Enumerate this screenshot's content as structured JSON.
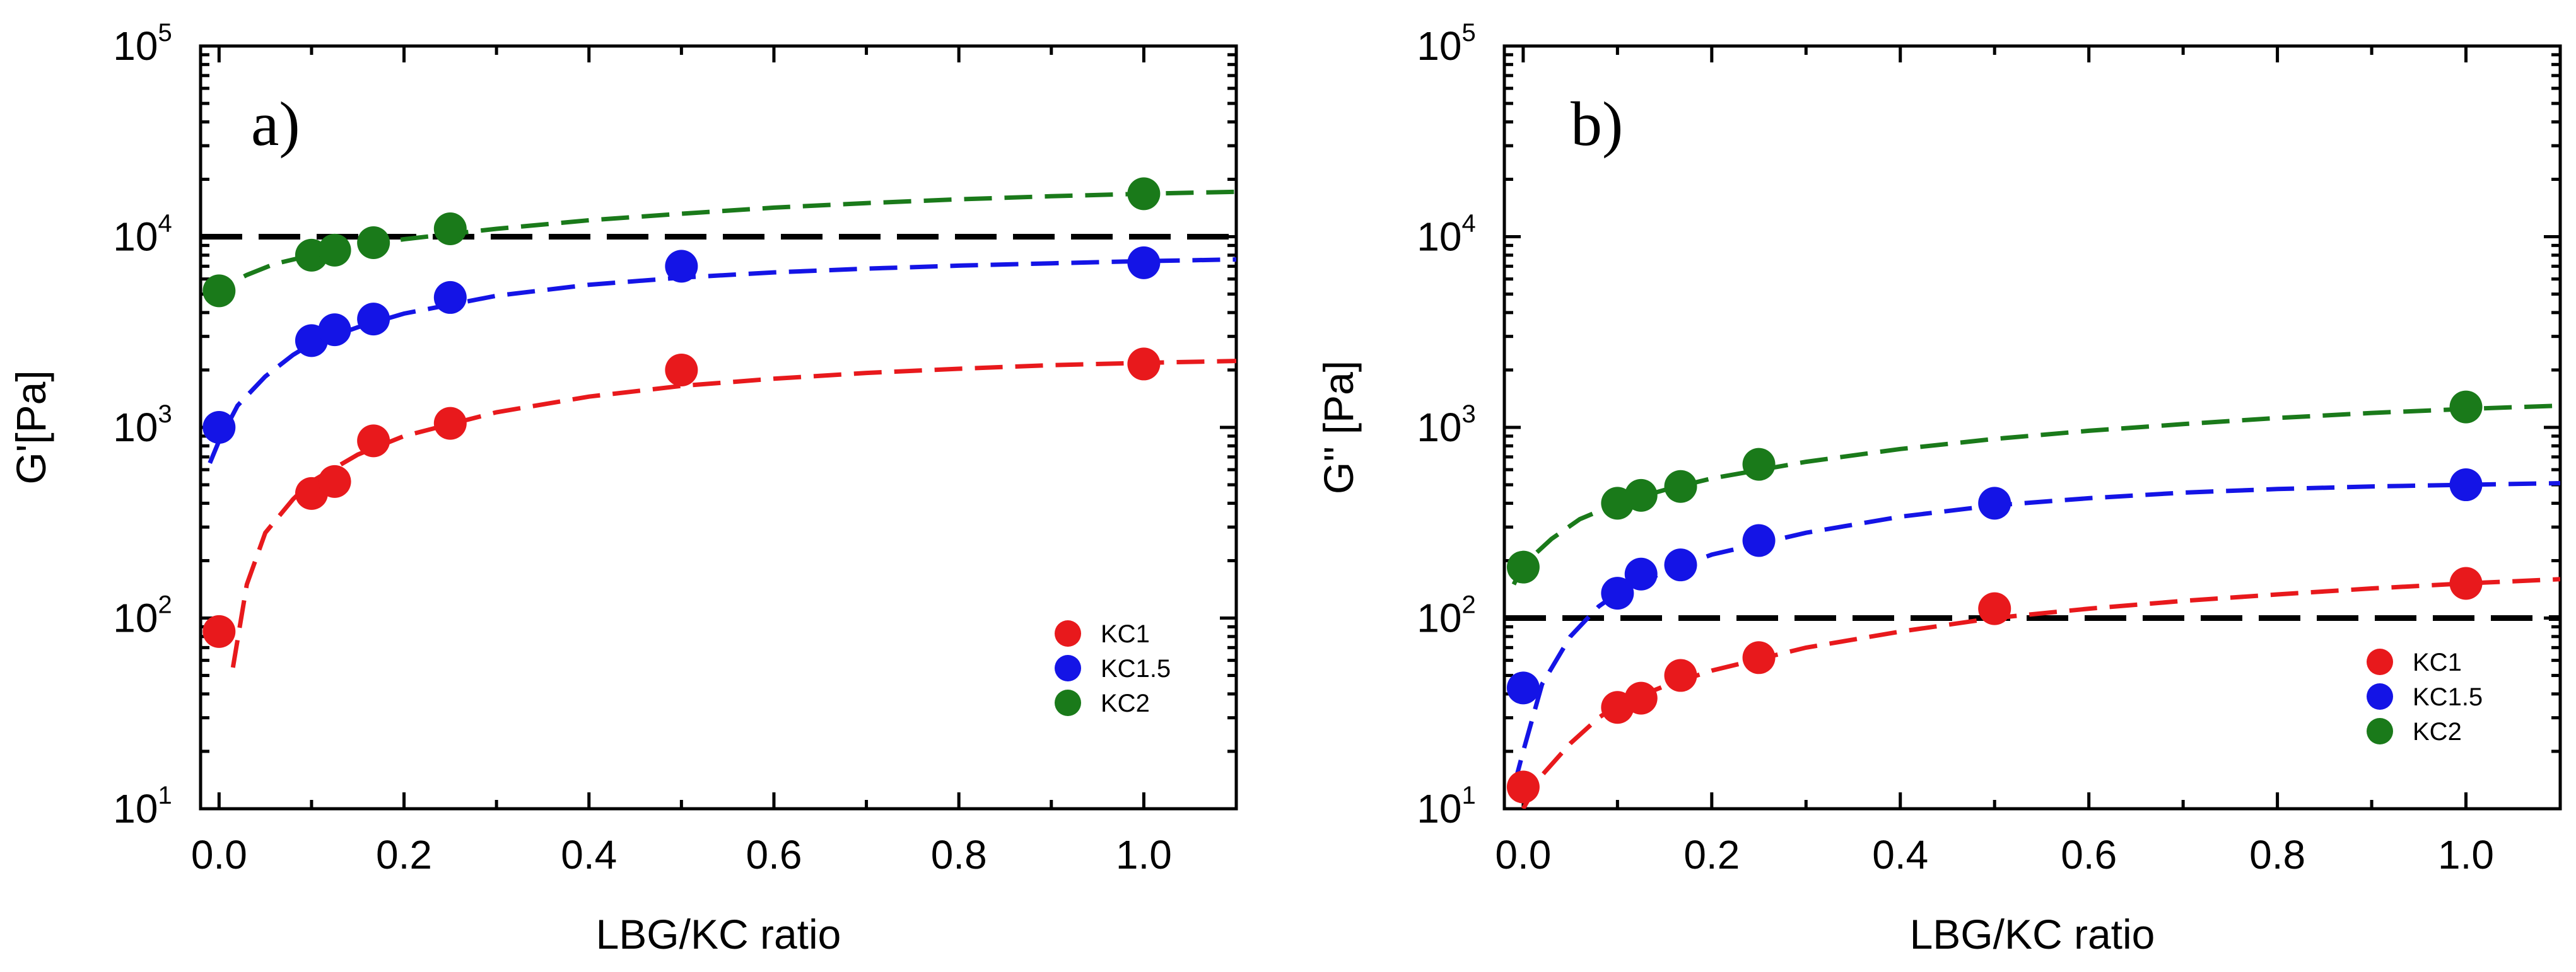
{
  "chart_data": [
    {
      "type": "scatter",
      "panel_label": "a)",
      "xlabel": "LBG/KC ratio",
      "ylabel": "G'[Pa]",
      "yscale": "log",
      "xlim": [
        -0.02,
        1.1
      ],
      "ylim": [
        10,
        100000
      ],
      "xticks": [
        {
          "value": 0.0,
          "label": "0.0"
        },
        {
          "value": 0.2,
          "label": "0.2"
        },
        {
          "value": 0.4,
          "label": "0.4"
        },
        {
          "value": 0.6,
          "label": "0.6"
        },
        {
          "value": 0.8,
          "label": "0.8"
        },
        {
          "value": 1.0,
          "label": "1.0"
        }
      ],
      "yticks": [
        {
          "value": 10,
          "base": "10",
          "exp": "1"
        },
        {
          "value": 100,
          "base": "10",
          "exp": "2"
        },
        {
          "value": 1000,
          "base": "10",
          "exp": "3"
        },
        {
          "value": 10000,
          "base": "10",
          "exp": "4"
        },
        {
          "value": 100000,
          "base": "10",
          "exp": "5"
        }
      ],
      "reference_line": 10000,
      "legend_position": "bottom-right",
      "series": [
        {
          "name": "KC1",
          "color": "#e8191c",
          "x": [
            0.0,
            0.1,
            0.125,
            0.167,
            0.25,
            0.5,
            1.0
          ],
          "y": [
            85,
            450,
            520,
            850,
            1050,
            2000,
            2150
          ],
          "fit": {
            "x": [
              0.015,
              0.03,
              0.05,
              0.08,
              0.1,
              0.15,
              0.2,
              0.3,
              0.4,
              0.5,
              0.6,
              0.7,
              0.8,
              0.9,
              1.0,
              1.1
            ],
            "y": [
              55,
              150,
              280,
              420,
              520,
              720,
              900,
              1200,
              1450,
              1650,
              1800,
              1930,
              2030,
              2120,
              2180,
              2230
            ]
          }
        },
        {
          "name": "KC1.5",
          "color": "#1414e6",
          "x": [
            0.0,
            0.1,
            0.125,
            0.167,
            0.25,
            0.5,
            1.0
          ],
          "y": [
            1000,
            2850,
            3250,
            3700,
            4800,
            7000,
            7300
          ],
          "fit": {
            "x": [
              -0.01,
              0.0,
              0.02,
              0.05,
              0.08,
              0.1,
              0.15,
              0.2,
              0.3,
              0.4,
              0.5,
              0.6,
              0.7,
              0.8,
              0.9,
              1.0,
              1.1
            ],
            "y": [
              650,
              850,
              1300,
              1850,
              2400,
              2750,
              3350,
              3950,
              4900,
              5600,
              6100,
              6500,
              6800,
              7050,
              7250,
              7450,
              7600
            ]
          }
        },
        {
          "name": "KC2",
          "color": "#1a7a1a",
          "x": [
            0.0,
            0.1,
            0.125,
            0.167,
            0.25,
            1.0
          ],
          "y": [
            5200,
            8000,
            8500,
            9300,
            11000,
            16800
          ],
          "fit": {
            "x": [
              -0.01,
              0.0,
              0.03,
              0.06,
              0.1,
              0.15,
              0.2,
              0.3,
              0.4,
              0.5,
              0.6,
              0.7,
              0.8,
              0.9,
              1.0,
              1.1
            ],
            "y": [
              4800,
              5300,
              6300,
              7200,
              8000,
              8900,
              9700,
              11000,
              12200,
              13200,
              14200,
              15000,
              15700,
              16300,
              16800,
              17200
            ]
          }
        }
      ]
    },
    {
      "type": "scatter",
      "panel_label": "b)",
      "xlabel": "LBG/KC ratio",
      "ylabel": "G'' [Pa]",
      "yscale": "log",
      "xlim": [
        -0.02,
        1.1
      ],
      "ylim": [
        10,
        100000
      ],
      "xticks": [
        {
          "value": 0.0,
          "label": "0.0"
        },
        {
          "value": 0.2,
          "label": "0.2"
        },
        {
          "value": 0.4,
          "label": "0.4"
        },
        {
          "value": 0.6,
          "label": "0.6"
        },
        {
          "value": 0.8,
          "label": "0.8"
        },
        {
          "value": 1.0,
          "label": "1.0"
        }
      ],
      "yticks": [
        {
          "value": 10,
          "base": "10",
          "exp": "1"
        },
        {
          "value": 100,
          "base": "10",
          "exp": "2"
        },
        {
          "value": 1000,
          "base": "10",
          "exp": "3"
        },
        {
          "value": 10000,
          "base": "10",
          "exp": "4"
        },
        {
          "value": 100000,
          "base": "10",
          "exp": "5"
        }
      ],
      "reference_line": 100,
      "legend_position": "bottom-right",
      "series": [
        {
          "name": "KC1",
          "color": "#e8191c",
          "x": [
            0.0,
            0.1,
            0.125,
            0.167,
            0.25,
            0.5,
            1.0
          ],
          "y": [
            13,
            34,
            38,
            50,
            62,
            112,
            152
          ],
          "fit": {
            "x": [
              0.0,
              0.02,
              0.05,
              0.08,
              0.1,
              0.15,
              0.2,
              0.3,
              0.4,
              0.5,
              0.6,
              0.7,
              0.8,
              0.9,
              1.0,
              1.1
            ],
            "y": [
              10,
              15,
              22,
              30,
              35,
              44,
              53,
              70,
              85,
              100,
              112,
              123,
              133,
              143,
              152,
              160
            ]
          }
        },
        {
          "name": "KC1.5",
          "color": "#1414e6",
          "x": [
            0.0,
            0.1,
            0.125,
            0.167,
            0.25,
            0.5,
            1.0
          ],
          "y": [
            43,
            135,
            170,
            190,
            255,
            400,
            500
          ],
          "fit": {
            "x": [
              -0.01,
              0.0,
              0.02,
              0.05,
              0.08,
              0.1,
              0.15,
              0.2,
              0.3,
              0.4,
              0.5,
              0.6,
              0.7,
              0.8,
              0.9,
              1.0,
              1.1
            ],
            "y": [
              13,
              20,
              45,
              80,
              115,
              135,
              175,
              215,
              280,
              340,
              390,
              425,
              455,
              475,
              490,
              500,
              510
            ]
          }
        },
        {
          "name": "KC2",
          "color": "#1a7a1a",
          "x": [
            0.0,
            0.1,
            0.125,
            0.167,
            0.25,
            1.0
          ],
          "y": [
            185,
            400,
            440,
            490,
            640,
            1280
          ],
          "fit": {
            "x": [
              -0.01,
              0.0,
              0.03,
              0.06,
              0.1,
              0.15,
              0.2,
              0.3,
              0.4,
              0.5,
              0.6,
              0.7,
              0.8,
              0.9,
              1.0,
              1.1
            ],
            "y": [
              150,
              190,
              260,
              330,
              400,
              470,
              540,
              660,
              770,
              870,
              960,
              1040,
              1120,
              1190,
              1250,
              1300
            ]
          }
        }
      ]
    }
  ]
}
